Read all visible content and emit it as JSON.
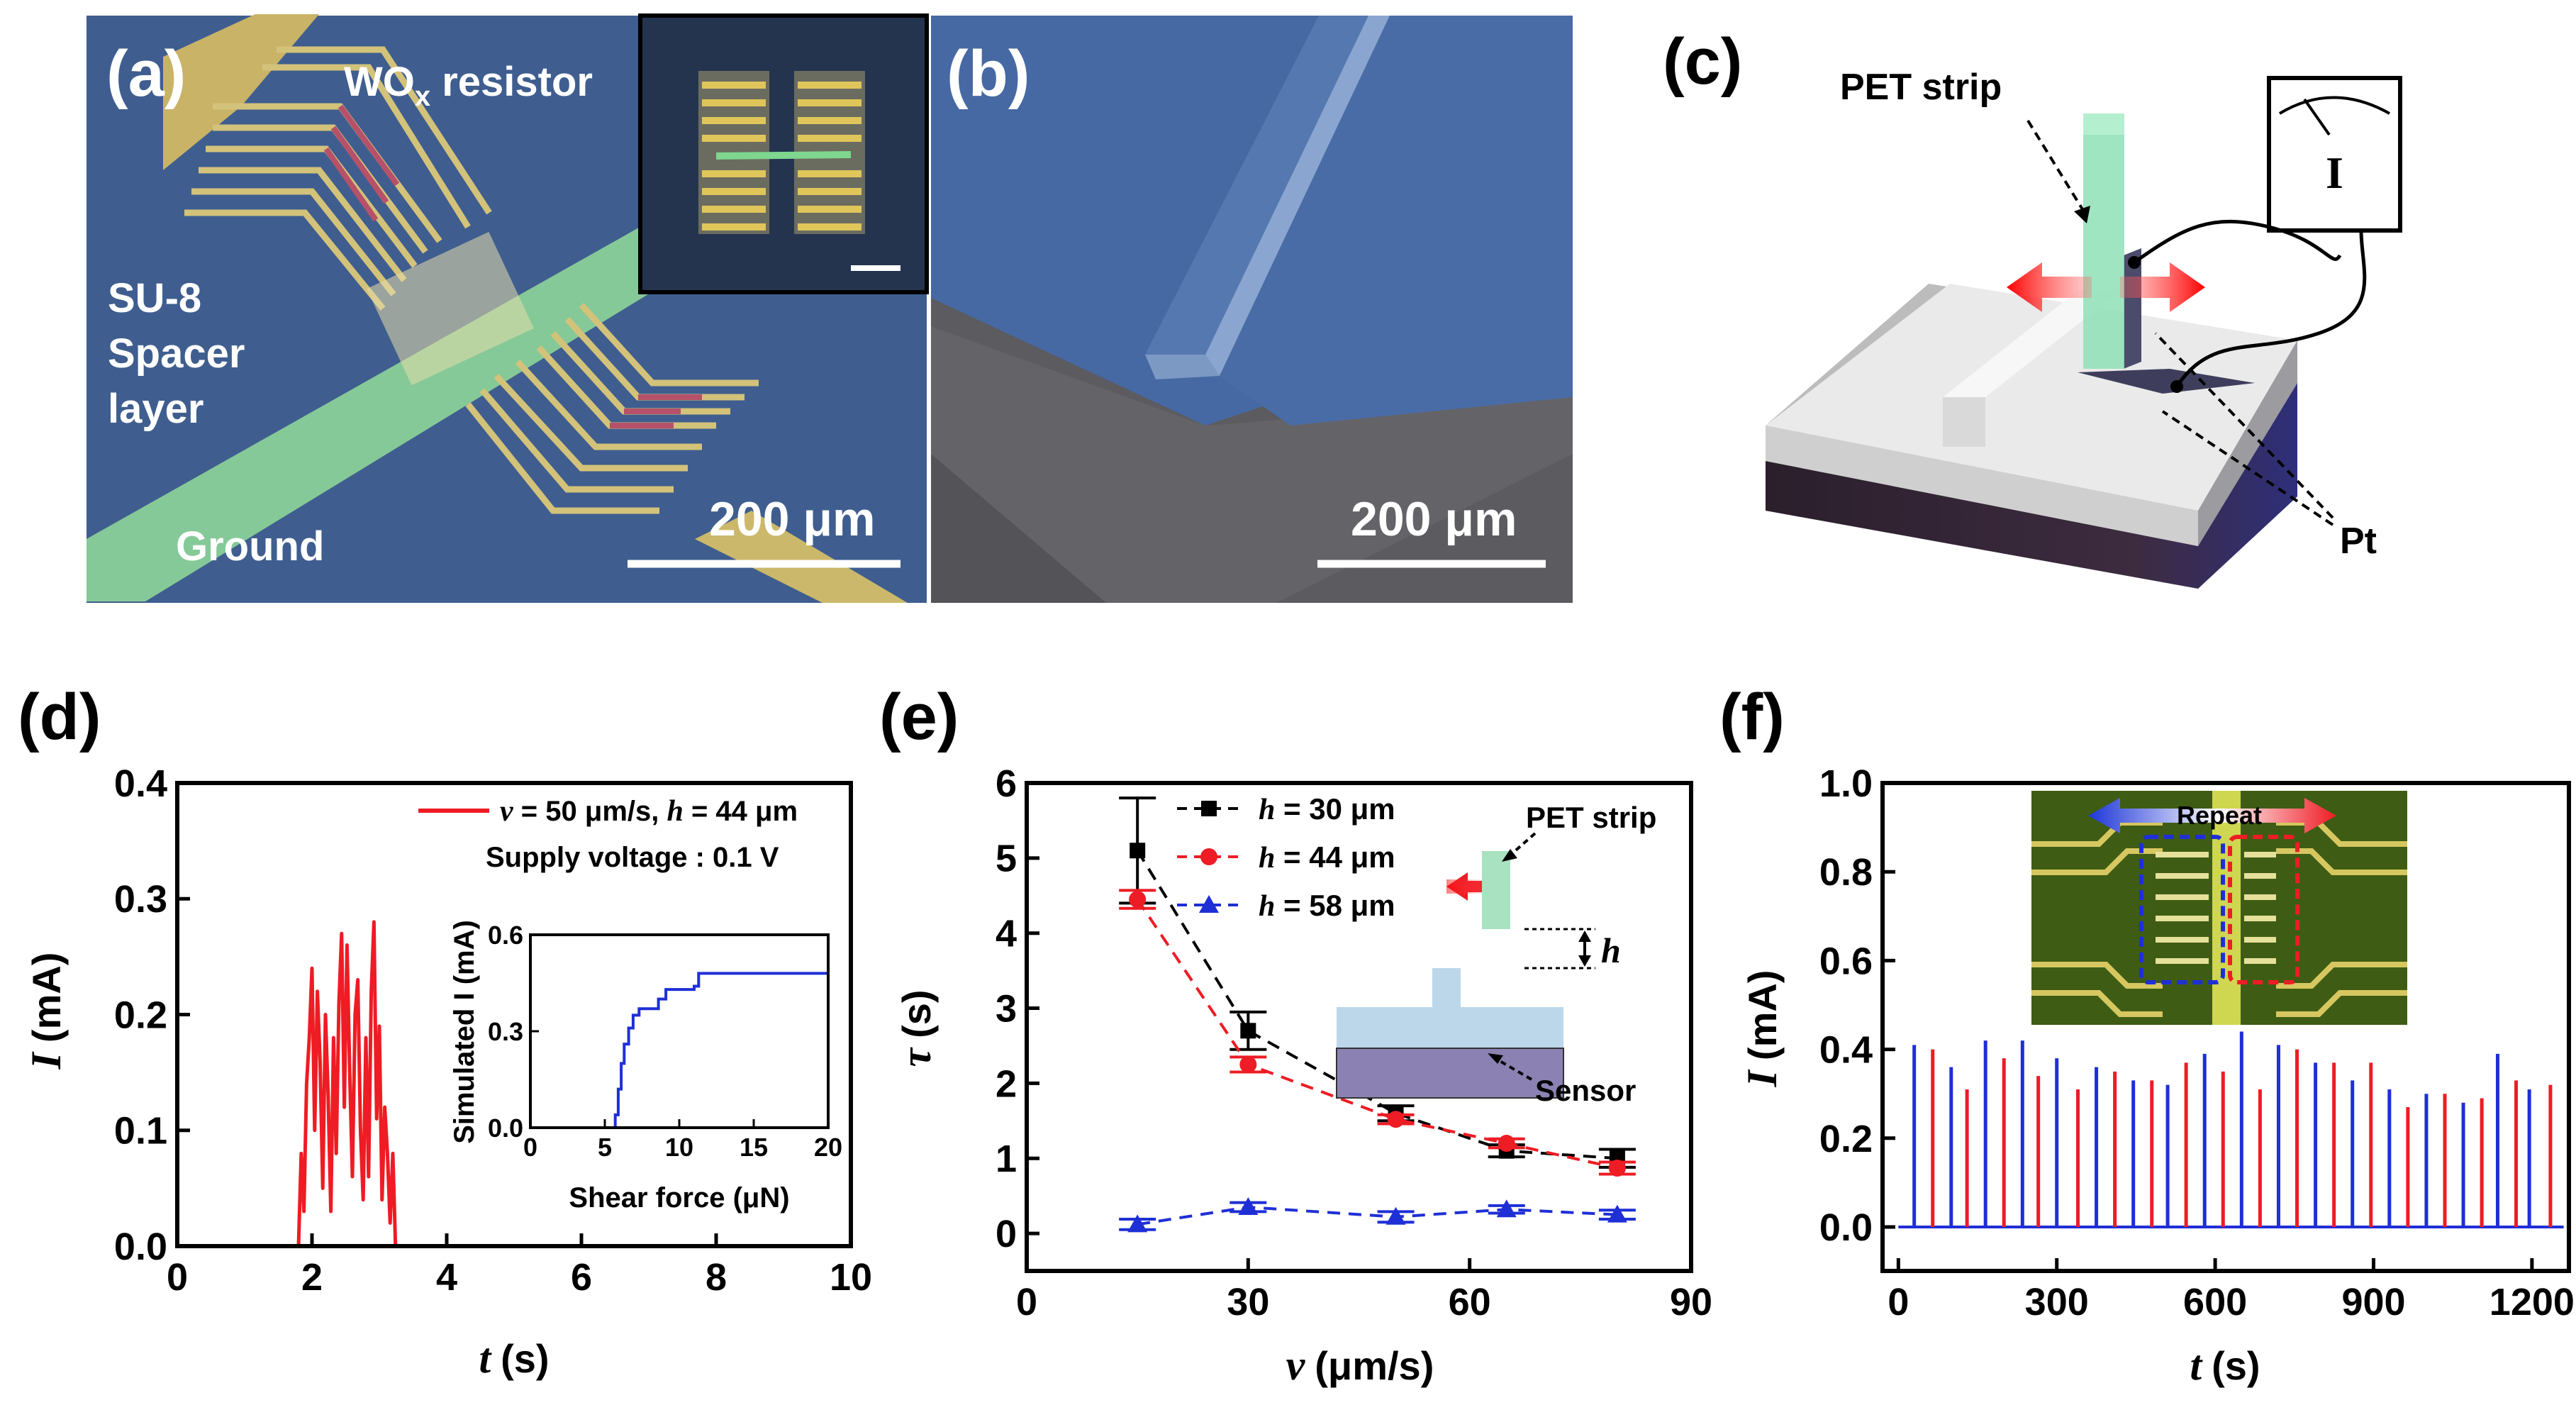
{
  "panels": {
    "a": {
      "label": "(a)",
      "resistor_label": "WO",
      "resistor_sub": "x",
      "resistor_suffix": " resistor",
      "spacer_lines": [
        "SU-8",
        "Spacer",
        "layer"
      ],
      "ground_label": "Ground",
      "scale_label": "200 μm"
    },
    "b": {
      "label": "(b)",
      "scale_label": "200 μm"
    },
    "c": {
      "label": "(c)",
      "strip_label": "PET strip",
      "meter_label": "I",
      "pt_label": "Pt"
    },
    "d": {
      "label": "(d)"
    },
    "e": {
      "label": "(e)",
      "strip_label": "PET strip",
      "h_label": "h",
      "sensor_label": "Sensor"
    },
    "f": {
      "label": "(f)",
      "repeat_label": "Repeat"
    }
  },
  "colors": {
    "red": "#ee1c24",
    "blue": "#1f2fd6",
    "black": "#000000",
    "sem_blue": "#3d5c8d",
    "gold": "#c9b163",
    "green_line": "#7ed68f"
  },
  "chart_data": [
    {
      "id": "d",
      "type": "line",
      "xlabel": "t",
      "xunit": "(s)",
      "ylabel": "I",
      "yunit": "(mA)",
      "xlim": [
        0,
        10
      ],
      "ylim": [
        0,
        0.4
      ],
      "xticks": [
        "0",
        "2",
        "4",
        "6",
        "8",
        "10"
      ],
      "yticks": [
        "0.0",
        "0.1",
        "0.2",
        "0.3",
        "0.4"
      ],
      "legend": {
        "entry_prefix": "v",
        "entry_mid": " = 50 μm/s, ",
        "entry_h": "h",
        "entry_suffix": " = 44 μm",
        "note": "Supply voltage : 0.1 V"
      },
      "series": [
        {
          "name": "v = 50 μm/s, h = 44 μm",
          "color": "#ee1c24",
          "x": [
            0,
            1.8,
            1.84,
            1.88,
            1.92,
            1.96,
            2.0,
            2.04,
            2.08,
            2.12,
            2.16,
            2.2,
            2.24,
            2.28,
            2.32,
            2.36,
            2.4,
            2.44,
            2.48,
            2.52,
            2.56,
            2.6,
            2.64,
            2.68,
            2.72,
            2.76,
            2.8,
            2.84,
            2.88,
            2.92,
            2.96,
            3.0,
            3.04,
            3.08,
            3.12,
            3.16,
            3.2,
            3.24,
            10
          ],
          "y": [
            0,
            0,
            0.08,
            0.03,
            0.14,
            0.18,
            0.24,
            0.1,
            0.22,
            0.16,
            0.05,
            0.2,
            0.13,
            0.03,
            0.18,
            0.08,
            0.21,
            0.27,
            0.12,
            0.26,
            0.15,
            0.06,
            0.2,
            0.23,
            0.1,
            0.04,
            0.18,
            0.06,
            0.22,
            0.28,
            0.11,
            0.19,
            0.04,
            0.12,
            0.08,
            0.02,
            0.08,
            0,
            0
          ]
        }
      ],
      "inset": {
        "xlabel": "Shear force (μN)",
        "ylabel": "Simulated I (mA)",
        "xlim": [
          0,
          20
        ],
        "ylim": [
          0,
          0.6
        ],
        "xticks": [
          "0",
          "5",
          "10",
          "15",
          "20"
        ],
        "yticks": [
          "0.0",
          "0.3",
          "0.6"
        ],
        "x": [
          0,
          5.5,
          5.7,
          5.9,
          6.1,
          6.3,
          6.6,
          6.9,
          7.3,
          8.6,
          9.1,
          11.0,
          11.3,
          20
        ],
        "y": [
          0,
          0,
          0.04,
          0.12,
          0.2,
          0.26,
          0.31,
          0.35,
          0.37,
          0.4,
          0.43,
          0.44,
          0.48,
          0.48
        ],
        "color": "#1f2fd6"
      }
    },
    {
      "id": "e",
      "type": "scatter",
      "xlabel": "v",
      "xunit": "(μm/s)",
      "ylabel": "τ",
      "yunit": "(s)",
      "xlim": [
        0,
        90
      ],
      "ylim": [
        -0.5,
        6
      ],
      "xticks": [
        "0",
        "30",
        "60",
        "90"
      ],
      "yticks": [
        "0",
        "1",
        "2",
        "3",
        "4",
        "5",
        "6"
      ],
      "x": [
        15,
        30,
        50,
        65,
        80
      ],
      "series": [
        {
          "name": "h = 30 μm",
          "label_h": "h",
          "label_rest": " = 30 μm",
          "color": "#000000",
          "marker": "square",
          "values": [
            5.1,
            2.7,
            1.6,
            1.1,
            1.0
          ],
          "errors": [
            0.7,
            0.25,
            0.1,
            0.08,
            0.12
          ]
        },
        {
          "name": "h = 44 μm",
          "label_h": "h",
          "label_rest": " = 44 μm",
          "color": "#ee1c24",
          "marker": "circle",
          "values": [
            4.45,
            2.25,
            1.52,
            1.2,
            0.87
          ],
          "errors": [
            0.12,
            0.1,
            0.06,
            0.06,
            0.08
          ]
        },
        {
          "name": "h = 58 μm",
          "label_h": "h",
          "label_rest": " = 58 μm",
          "color": "#1f2fd6",
          "marker": "triangle",
          "values": [
            0.12,
            0.35,
            0.22,
            0.32,
            0.25
          ],
          "errors": [
            0.07,
            0.06,
            0.07,
            0.05,
            0.06
          ]
        }
      ]
    },
    {
      "id": "f",
      "type": "line",
      "xlabel": "t",
      "xunit": "(s)",
      "ylabel": "I",
      "yunit": "(mA)",
      "xlim": [
        -30,
        1270
      ],
      "ylim": [
        0,
        1.0
      ],
      "xticks": [
        "0",
        "300",
        "600",
        "900",
        "1200"
      ],
      "yticks": [
        "0.0",
        "0.2",
        "0.4",
        "0.6",
        "0.8",
        "1.0"
      ],
      "series": [
        {
          "name": "blue pulses",
          "color": "#1f2fd6",
          "x": [
            30,
            100,
            165,
            235,
            300,
            375,
            445,
            510,
            580,
            650,
            720,
            790,
            860,
            930,
            1000,
            1070,
            1135,
            1195
          ],
          "values": [
            0.41,
            0.36,
            0.42,
            0.42,
            0.38,
            0.36,
            0.33,
            0.32,
            0.39,
            0.44,
            0.41,
            0.37,
            0.33,
            0.31,
            0.3,
            0.28,
            0.39,
            0.31
          ]
        },
        {
          "name": "red pulses",
          "color": "#ee1c24",
          "x": [
            65,
            130,
            200,
            265,
            340,
            410,
            480,
            545,
            615,
            685,
            755,
            825,
            895,
            965,
            1035,
            1105,
            1170,
            1235
          ],
          "values": [
            0.4,
            0.31,
            0.38,
            0.34,
            0.31,
            0.35,
            0.33,
            0.37,
            0.35,
            0.31,
            0.4,
            0.37,
            0.37,
            0.27,
            0.3,
            0.29,
            0.33,
            0.32
          ]
        }
      ]
    }
  ]
}
